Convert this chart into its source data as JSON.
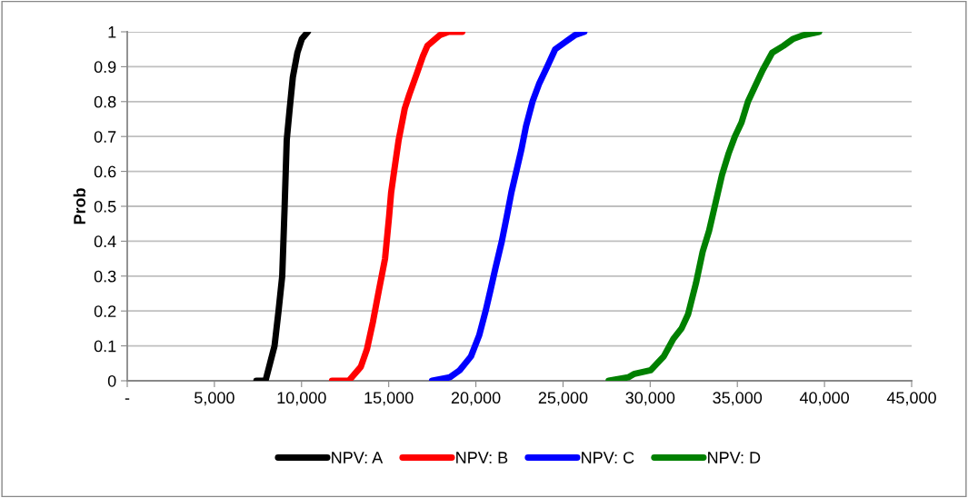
{
  "chart_data": {
    "type": "line",
    "ylabel": "Prob",
    "xlim": [
      0,
      45000
    ],
    "ylim": [
      0,
      1
    ],
    "xticks": [
      {
        "value": 0,
        "label": "-"
      },
      {
        "value": 5000,
        "label": "5,000"
      },
      {
        "value": 10000,
        "label": "10,000"
      },
      {
        "value": 15000,
        "label": "15,000"
      },
      {
        "value": 20000,
        "label": "20,000"
      },
      {
        "value": 25000,
        "label": "25,000"
      },
      {
        "value": 30000,
        "label": "30,000"
      },
      {
        "value": 35000,
        "label": "35,000"
      },
      {
        "value": 40000,
        "label": "40,000"
      },
      {
        "value": 45000,
        "label": "45,000"
      }
    ],
    "yticks": [
      0,
      0.1,
      0.2,
      0.3,
      0.4,
      0.5,
      0.6,
      0.7,
      0.8,
      0.9,
      1
    ],
    "grid": "y",
    "legend": "bottom",
    "marker": "none",
    "line_style": "solid",
    "series": [
      {
        "name": "NPV: A",
        "color": "#000000",
        "x": [
          7410,
          7930,
          8190,
          8450,
          8680,
          8890,
          9030,
          9150,
          9320,
          9500,
          9760,
          10020,
          10360
        ],
        "values": [
          0,
          0,
          0.05,
          0.1,
          0.2,
          0.3,
          0.5,
          0.69,
          0.78,
          0.87,
          0.94,
          0.98,
          1
        ]
      },
      {
        "name": "NPV: B",
        "color": "#ff0000",
        "x": [
          11750,
          12710,
          13400,
          13750,
          14100,
          14440,
          14790,
          15020,
          15140,
          15310,
          15570,
          15920,
          16180,
          16610,
          16960,
          17220,
          17920,
          18440,
          19220
        ],
        "values": [
          0,
          0,
          0.04,
          0.09,
          0.17,
          0.26,
          0.35,
          0.47,
          0.54,
          0.6,
          0.69,
          0.78,
          0.82,
          0.88,
          0.93,
          0.96,
          0.99,
          1,
          1
        ]
      },
      {
        "name": "NPV: C",
        "color": "#0000ff",
        "x": [
          17490,
          18510,
          19070,
          19720,
          20190,
          20560,
          20840,
          21110,
          21490,
          21770,
          22040,
          22320,
          22600,
          22880,
          23250,
          23620,
          24090,
          24550,
          25110,
          25670,
          26220
        ],
        "values": [
          0,
          0.01,
          0.03,
          0.07,
          0.13,
          0.2,
          0.26,
          0.32,
          0.4,
          0.47,
          0.54,
          0.6,
          0.66,
          0.73,
          0.8,
          0.85,
          0.9,
          0.95,
          0.97,
          0.99,
          1
        ]
      },
      {
        "name": "NPV: D",
        "color": "#008000",
        "x": [
          27620,
          28740,
          29100,
          30030,
          30780,
          31330,
          31800,
          32170,
          32630,
          33010,
          33380,
          33750,
          34120,
          34490,
          34860,
          35240,
          35610,
          35980,
          36450,
          37000,
          37650,
          38210,
          38770,
          39690
        ],
        "values": [
          0,
          0.01,
          0.02,
          0.03,
          0.07,
          0.12,
          0.15,
          0.19,
          0.28,
          0.37,
          0.43,
          0.51,
          0.59,
          0.65,
          0.7,
          0.74,
          0.8,
          0.84,
          0.89,
          0.94,
          0.96,
          0.98,
          0.99,
          1
        ]
      }
    ]
  }
}
